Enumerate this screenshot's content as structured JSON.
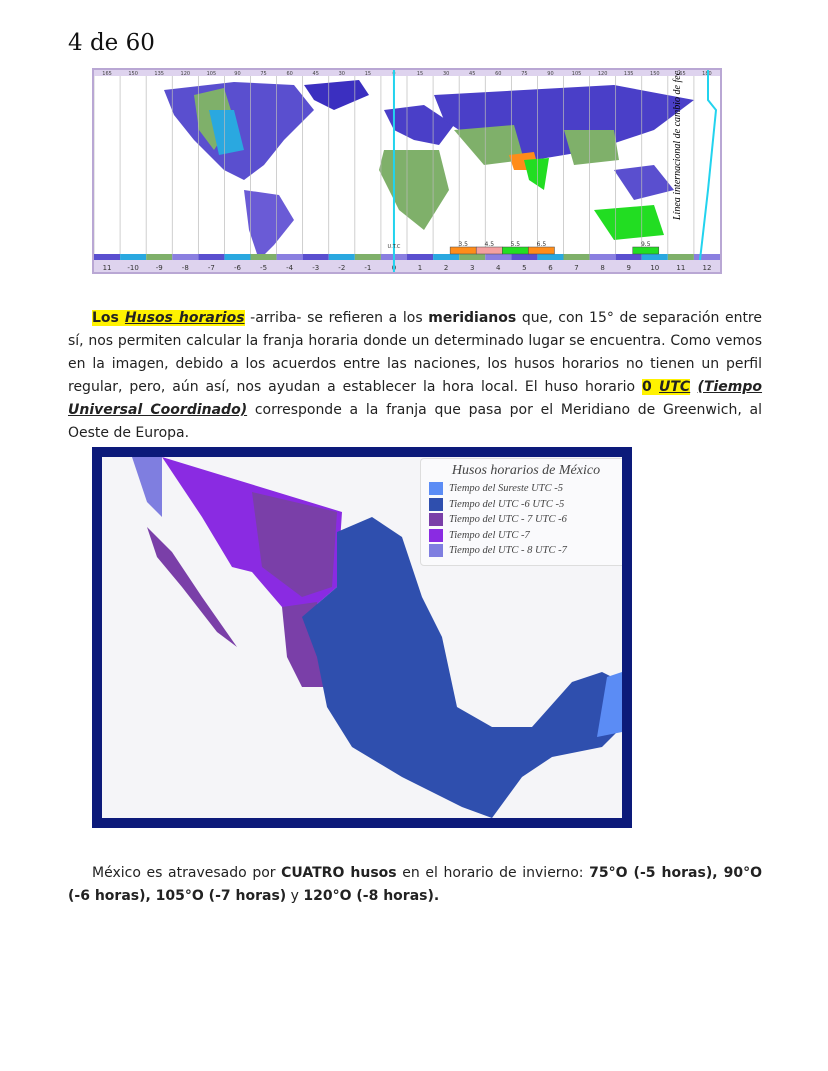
{
  "page": {
    "counter": "4 de 60"
  },
  "world_map": {
    "top_labels": [
      "165",
      "150",
      "135",
      "120",
      "105",
      "90",
      "75",
      "60",
      "45",
      "30",
      "15",
      "0",
      "15",
      "30",
      "45",
      "60",
      "75",
      "90",
      "105",
      "120",
      "135",
      "150",
      "165",
      "180"
    ],
    "bottom_labels": [
      "11",
      "-10",
      "-9",
      "-8",
      "-7",
      "-6",
      "-5",
      "-4",
      "-3",
      "-2",
      "-1",
      "0",
      "1",
      "2",
      "3",
      "4",
      "5",
      "6",
      "7",
      "8",
      "9",
      "10",
      "11",
      "12"
    ],
    "half_hour_labels": [
      "3.5",
      "4.5",
      "5.5",
      "6.5",
      "9.5"
    ],
    "utc_label": "U.T.C",
    "date_line_label": "Línea internacional de cambio de fecha"
  },
  "paragraph1": {
    "p1": "Los",
    "p2": "Husos horarios",
    "p3": " -arriba- se refieren a los ",
    "p4": "meridianos",
    "p5": " que, con 15° de separación entre sí, nos permiten calcular la franja horaria donde un determinado lugar se encuentra. Como vemos en la imagen, debido a los acuerdos entre las naciones, los husos horarios no tienen un perfil regular, pero, aún así, nos ayudan a establecer la hora local. El huso horario ",
    "p6": "0",
    "p7": "UTC",
    "p8": "(Tiempo Universal Coordinado)",
    "p9": " corresponde a la franja que pasa por el Meridiano de Greenwich, al Oeste de Europa."
  },
  "mexico_map": {
    "legend_title": "Husos horarios de México",
    "legend_items": [
      {
        "label": "Tiempo del Sureste UTC -5",
        "color": "#5b8cf5"
      },
      {
        "label": "Tiempo del UTC -6  UTC -5",
        "color": "#2f4fae"
      },
      {
        "label": "Tiempo del UTC - 7 UTC -6",
        "color": "#7a3fa8"
      },
      {
        "label": "Tiempo del UTC -7",
        "color": "#8a2be2"
      },
      {
        "label": "Tiempo del UTC - 8 UTC -7",
        "color": "#7f7ee0"
      }
    ]
  },
  "paragraph2": {
    "p1": "México es atravesado por ",
    "p2": "CUATRO husos",
    "p3": " en el horario de invierno: ",
    "p4": "75°O (-5 horas), 90°O (-6 horas), 105°O (-7 horas)",
    "p5": " y ",
    "p6": "120°O (-8 horas)."
  }
}
